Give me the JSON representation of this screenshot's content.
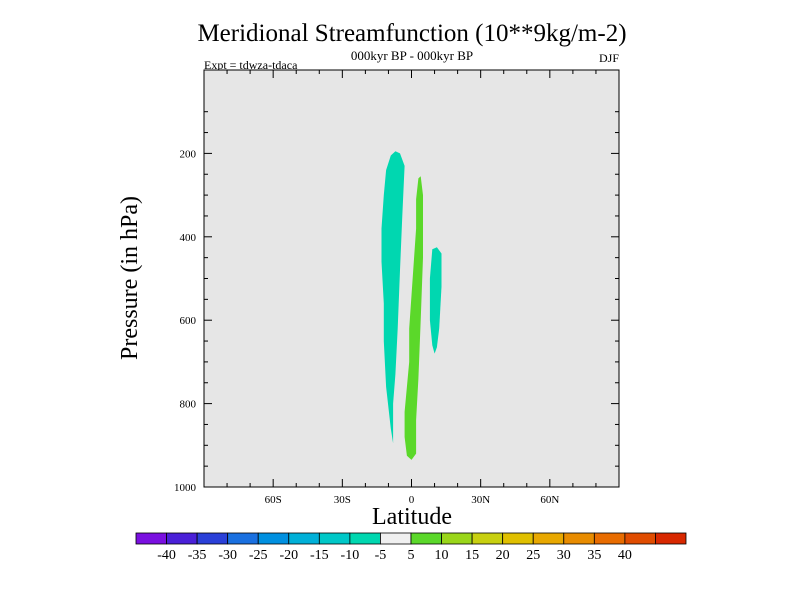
{
  "chart_data": {
    "type": "contour",
    "title": "Meridional Streamfunction (10**9kg/m-2)",
    "subtitle": "000kyr BP - 000kyr BP",
    "left_label": "Expt = tdwza-tdaca",
    "right_label": "DJF",
    "xlabel": "Latitude",
    "ylabel": "Pressure (in hPa)",
    "xlim": [
      -90,
      90
    ],
    "ylim": [
      1000,
      0
    ],
    "x_ticks": [
      {
        "value": -60,
        "label": "60S"
      },
      {
        "value": -30,
        "label": "30S"
      },
      {
        "value": 0,
        "label": "0"
      },
      {
        "value": 30,
        "label": "30N"
      },
      {
        "value": 60,
        "label": "60N"
      }
    ],
    "y_ticks": [
      {
        "value": 200,
        "label": "200"
      },
      {
        "value": 400,
        "label": "400"
      },
      {
        "value": 600,
        "label": "600"
      },
      {
        "value": 800,
        "label": "800"
      },
      {
        "value": 1000,
        "label": "1000"
      }
    ],
    "background_fill": "#e6e6e6",
    "contour_regions": [
      {
        "level": "-10 to -5",
        "color": "#00d7b0",
        "polygon": [
          [
            -7,
            195
          ],
          [
            -5,
            200
          ],
          [
            -3,
            230
          ],
          [
            -4,
            350
          ],
          [
            -5,
            480
          ],
          [
            -6,
            620
          ],
          [
            -7,
            730
          ],
          [
            -8,
            800
          ],
          [
            -8,
            895
          ],
          [
            -9,
            860
          ],
          [
            -11,
            760
          ],
          [
            -12,
            650
          ],
          [
            -12,
            560
          ],
          [
            -13,
            460
          ],
          [
            -13,
            380
          ],
          [
            -12,
            300
          ],
          [
            -11,
            240
          ],
          [
            -9,
            205
          ]
        ]
      },
      {
        "level": "5 to 10",
        "color": "#5bd82a",
        "polygon": [
          [
            3,
            260
          ],
          [
            4,
            255
          ],
          [
            5,
            300
          ],
          [
            5,
            450
          ],
          [
            4,
            600
          ],
          [
            3,
            740
          ],
          [
            2,
            840
          ],
          [
            2,
            920
          ],
          [
            0,
            935
          ],
          [
            -2,
            925
          ],
          [
            -3,
            880
          ],
          [
            -3,
            820
          ],
          [
            -2,
            760
          ],
          [
            -1,
            700
          ],
          [
            -1,
            620
          ],
          [
            0,
            540
          ],
          [
            1,
            460
          ],
          [
            2,
            380
          ],
          [
            2,
            310
          ]
        ]
      },
      {
        "level": "-10 to -5",
        "color": "#00d7b0",
        "polygon": [
          [
            9,
            430
          ],
          [
            11,
            425
          ],
          [
            13,
            440
          ],
          [
            13,
            520
          ],
          [
            12,
            620
          ],
          [
            11,
            665
          ],
          [
            10,
            680
          ],
          [
            9,
            660
          ],
          [
            8,
            600
          ],
          [
            8,
            500
          ]
        ]
      }
    ],
    "colorbar": {
      "colors": [
        "#7a10e0",
        "#4a20d8",
        "#2a40d8",
        "#1a70e0",
        "#0090e0",
        "#00b0d8",
        "#00c8c8",
        "#00d7b0",
        "#f0f0f0",
        "#5bd82a",
        "#9ad61a",
        "#c8d010",
        "#e0c000",
        "#e8a800",
        "#e88c00",
        "#e86c00",
        "#e04c00",
        "#d82800"
      ],
      "labels": [
        "-40",
        "-35",
        "-30",
        "-25",
        "-20",
        "-15",
        "-10",
        "-5",
        "5",
        "10",
        "15",
        "20",
        "25",
        "30",
        "35",
        "40"
      ]
    }
  }
}
